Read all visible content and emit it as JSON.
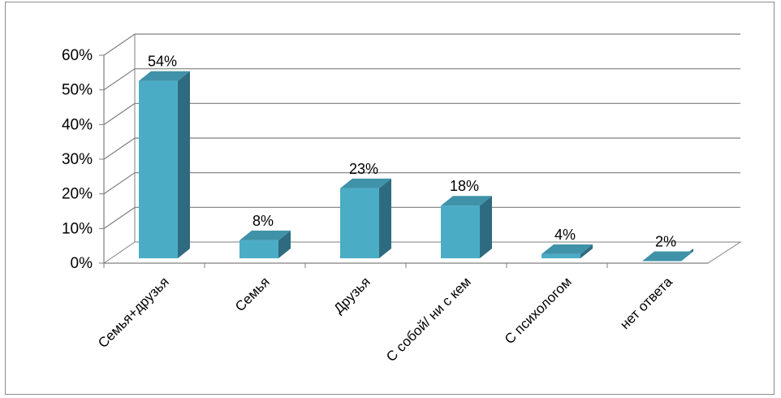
{
  "chart_data": {
    "type": "bar",
    "style": "3d-column",
    "categories": [
      "Семья+друзья",
      "Семья",
      "Друзья",
      "С собой/ ни с кем",
      "С психологом",
      "нет ответа"
    ],
    "values": [
      54,
      8,
      23,
      18,
      4,
      2
    ],
    "data_labels": [
      "54%",
      "8%",
      "23%",
      "18%",
      "4%",
      "2%"
    ],
    "y_ticks": [
      "0%",
      "10%",
      "20%",
      "30%",
      "40%",
      "50%",
      "60%"
    ],
    "ylim": [
      0,
      60
    ],
    "grid": true,
    "legend": "none",
    "title": "",
    "xlabel": "",
    "ylabel": "",
    "colors": {
      "bar_front": "#4bacc6",
      "bar_side": "#2f6b80",
      "bar_top": "#3f92a8",
      "grid": "#7f7f7f",
      "axis": "#7f7f7f",
      "text": "#000000"
    }
  }
}
